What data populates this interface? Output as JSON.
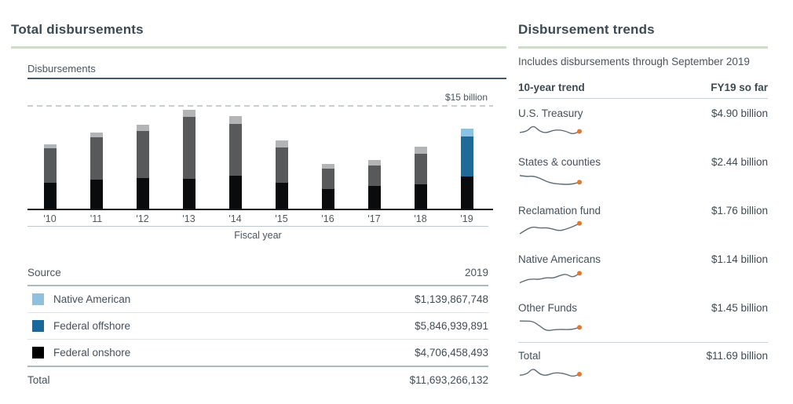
{
  "left_panel": {
    "title": "Total disbursements",
    "chart_label": "Disbursements",
    "reference_label": "$15 billion",
    "xlabel": "Fiscal year",
    "table": {
      "header": {
        "source": "Source",
        "year": "2019"
      },
      "rows": [
        {
          "label": "Native American",
          "value": "$1,139,867,748",
          "swatch": "#8fc1df"
        },
        {
          "label": "Federal offshore",
          "value": "$5,846,939,891",
          "swatch": "#17699b"
        },
        {
          "label": "Federal onshore",
          "value": "$4,706,458,493",
          "swatch": "#000000"
        }
      ],
      "total": {
        "label": "Total",
        "value": "$11,693,266,132"
      }
    }
  },
  "right_panel": {
    "title": "Disbursement trends",
    "subtitle": "Includes disbursements through September 2019",
    "header": {
      "trend": "10-year trend",
      "fy19": "FY19 so far"
    },
    "rows": [
      {
        "label": "U.S. Treasury",
        "value": "$4.90 billion"
      },
      {
        "label": "States & counties",
        "value": "$2.44 billion"
      },
      {
        "label": "Reclamation fund",
        "value": "$1.76 billion"
      },
      {
        "label": "Native Americans",
        "value": "$1.14 billion"
      },
      {
        "label": "Other Funds",
        "value": "$1.45 billion"
      }
    ],
    "total_row": {
      "label": "Total",
      "value": "$11.69 billion"
    }
  },
  "chart_data": [
    {
      "type": "bar",
      "stacked": true,
      "title": "Disbursements",
      "xlabel": "Fiscal year",
      "unit": "billion USD",
      "categories": [
        "'10",
        "'11",
        "'12",
        "'13",
        "'14",
        "'15",
        "'16",
        "'17",
        "'18",
        "'19"
      ],
      "series": [
        {
          "name": "Federal onshore",
          "values": [
            3.73,
            4.18,
            4.44,
            4.31,
            4.72,
            3.79,
            2.81,
            3.3,
            3.49,
            4.71
          ]
        },
        {
          "name": "Federal offshore",
          "values": [
            5.02,
            6.19,
            6.87,
            9.0,
            7.51,
            5.13,
            2.93,
            3.0,
            4.38,
            5.85
          ]
        },
        {
          "name": "Native American",
          "values": [
            0.56,
            0.63,
            0.93,
            0.98,
            1.19,
            1.01,
            0.64,
            0.74,
            1.05,
            1.14
          ]
        }
      ],
      "reference_line": {
        "value": 15,
        "label": "$15 billion"
      },
      "ylim": [
        0,
        16.5
      ],
      "grid": false,
      "highlight_category": "'19",
      "colors": {
        "onshore": "#0a0b0c",
        "offshore": "#57595b",
        "native": "#b2b4b6",
        "offshore_highlight": "#1e6b99",
        "native_highlight": "#8cc3e2"
      }
    },
    {
      "type": "line",
      "title": "10-year trend sparklines",
      "note": "normalized trend shapes 0-100, FY2010-FY2019, axes not shown; orange end dot",
      "x": [
        "'10",
        "'11",
        "'12",
        "'13",
        "'14",
        "'15",
        "'16",
        "'17",
        "'18",
        "'19"
      ],
      "series": [
        {
          "name": "U.S. Treasury",
          "values": [
            38,
            40,
            88,
            45,
            34,
            52,
            55,
            45,
            25,
            45
          ]
        },
        {
          "name": "States & counties",
          "values": [
            75,
            68,
            72,
            58,
            35,
            22,
            18,
            15,
            18,
            30
          ]
        },
        {
          "name": "Reclamation fund",
          "values": [
            10,
            40,
            58,
            48,
            52,
            42,
            30,
            42,
            58,
            80
          ]
        },
        {
          "name": "Native Americans",
          "values": [
            8,
            28,
            34,
            30,
            44,
            38,
            56,
            68,
            42,
            72
          ]
        },
        {
          "name": "Other Funds",
          "values": [
            78,
            78,
            75,
            45,
            12,
            18,
            22,
            20,
            22,
            35
          ]
        },
        {
          "name": "Total",
          "values": [
            35,
            38,
            85,
            42,
            32,
            50,
            52,
            42,
            25,
            42
          ]
        }
      ],
      "line_color": "#5f6d76",
      "dot_color": "#e0792f"
    }
  ]
}
